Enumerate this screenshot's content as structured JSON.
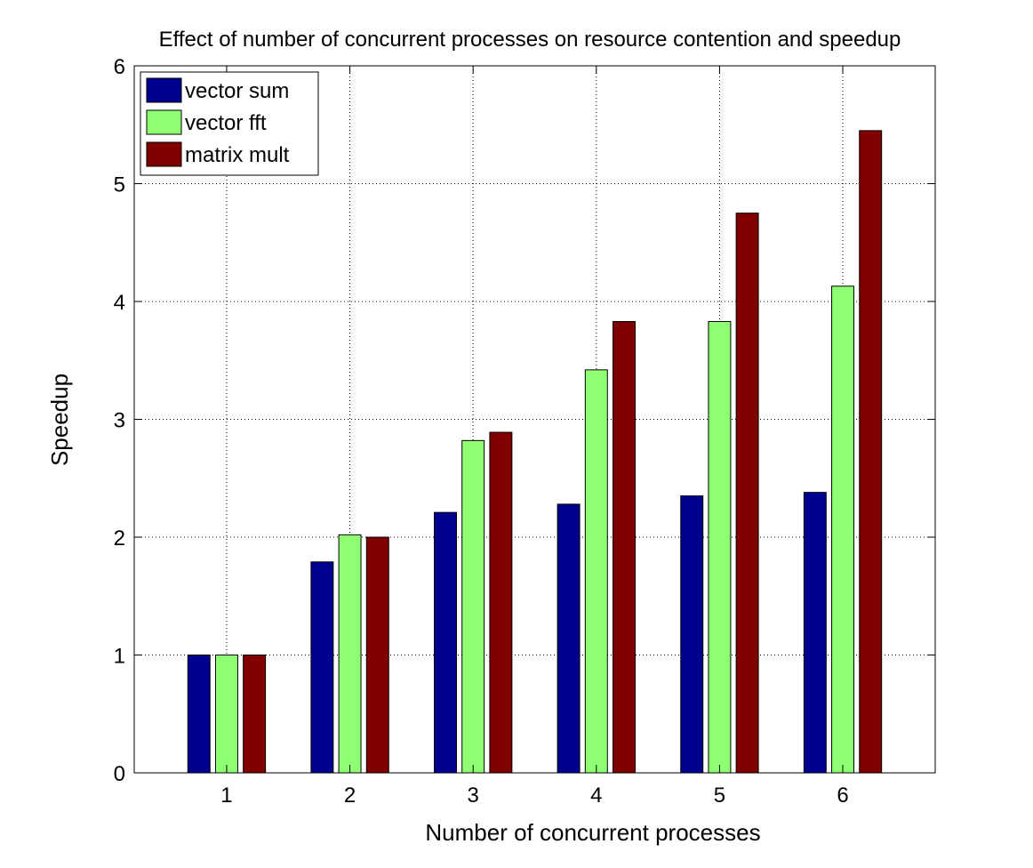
{
  "chart_data": {
    "type": "bar",
    "title": "Effect of number of concurrent processes on resource contention and speedup",
    "xlabel": "Number of concurrent processes",
    "ylabel": "Speedup",
    "categories": [
      "1",
      "2",
      "3",
      "4",
      "5",
      "6"
    ],
    "xlim": [
      0.25,
      6.75
    ],
    "ylim": [
      0,
      6
    ],
    "yticks": [
      0,
      1,
      2,
      3,
      4,
      5,
      6
    ],
    "grid": true,
    "legend_position": "top-left",
    "series": [
      {
        "name": "vector sum",
        "color": "#00008f",
        "values": [
          1.0,
          1.79,
          2.21,
          2.28,
          2.35,
          2.38
        ]
      },
      {
        "name": "vector fft",
        "color": "#8fff73",
        "values": [
          1.0,
          2.02,
          2.82,
          3.42,
          3.83,
          4.13
        ]
      },
      {
        "name": "matrix mult",
        "color": "#800000",
        "values": [
          1.0,
          2.0,
          2.89,
          3.83,
          4.75,
          5.45
        ]
      }
    ]
  }
}
